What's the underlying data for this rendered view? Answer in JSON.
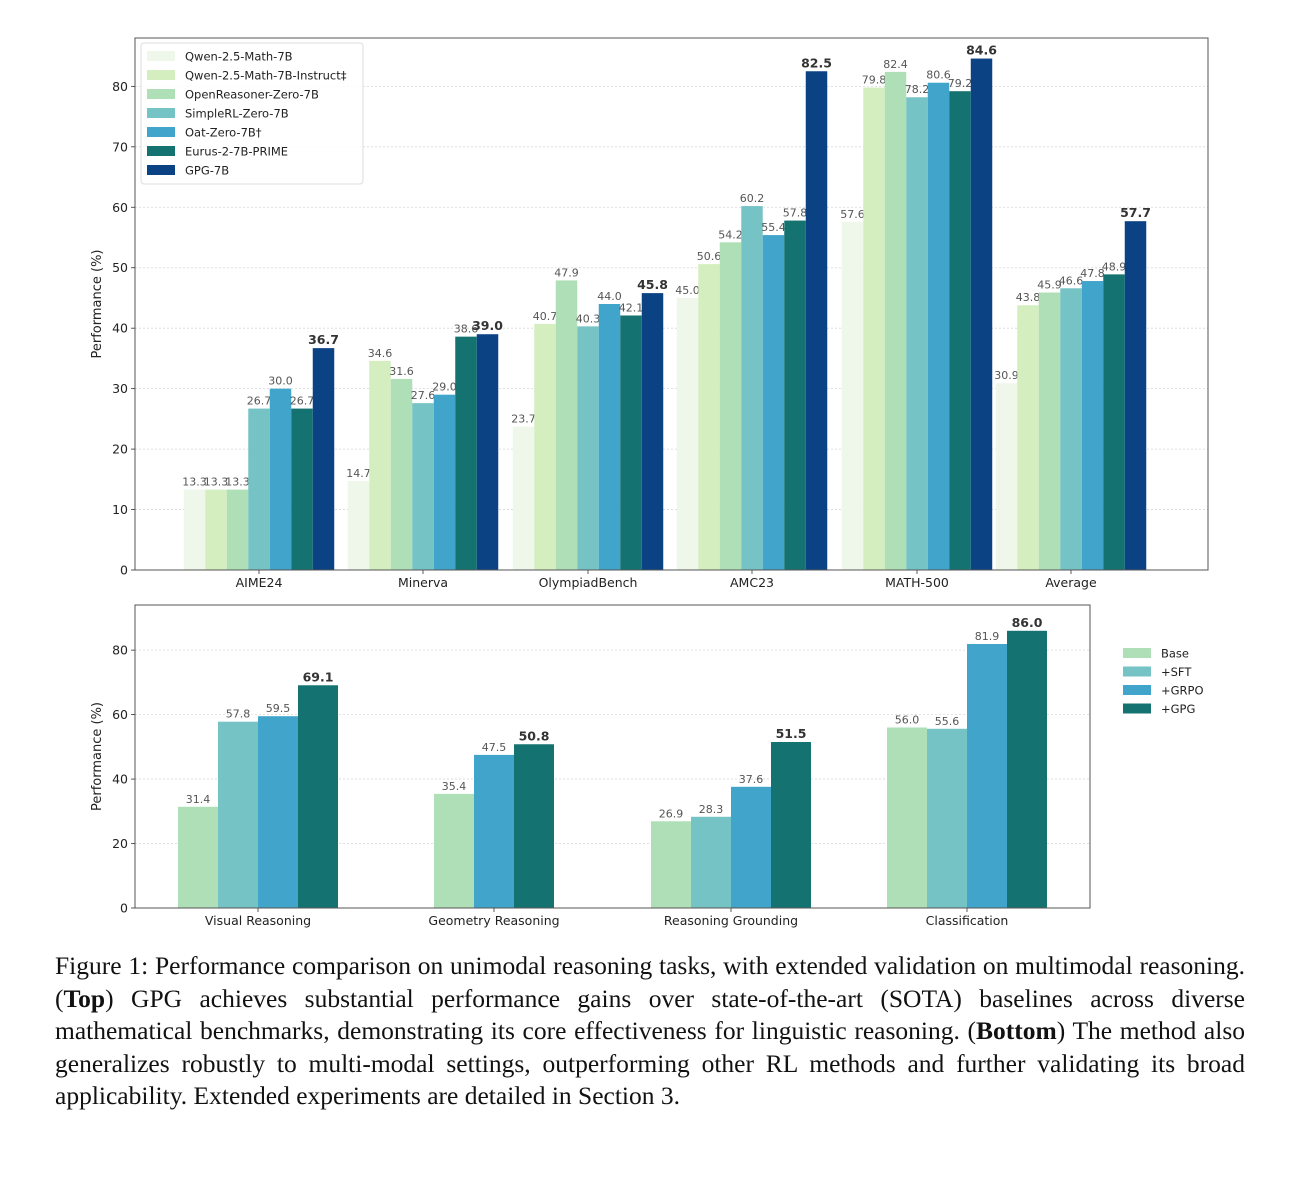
{
  "chart_data": [
    {
      "type": "bar",
      "title": "",
      "xlabel": "",
      "ylabel": "Performance (%)",
      "ylim": [
        0,
        88
      ],
      "yticks": [
        0,
        10,
        20,
        30,
        40,
        50,
        60,
        70,
        80
      ],
      "grid": true,
      "legend_position": "top-left",
      "categories": [
        "AIME24",
        "Minerva",
        "OlympiadBench",
        "AMC23",
        "MATH-500",
        "Average"
      ],
      "series": [
        {
          "name": "Qwen-2.5-Math-7B",
          "color": "#eef7ea",
          "values": [
            13.3,
            14.7,
            23.7,
            45.0,
            57.6,
            30.9
          ]
        },
        {
          "name": "Qwen-2.5-Math-7B-Instruct‡",
          "color": "#d4eec0",
          "values": [
            13.3,
            34.6,
            40.7,
            50.6,
            79.8,
            43.8
          ]
        },
        {
          "name": "OpenReasoner-Zero-7B",
          "color": "#afdfb6",
          "values": [
            13.3,
            31.6,
            47.9,
            54.2,
            82.4,
            45.9
          ]
        },
        {
          "name": "SimpleRL-Zero-7B",
          "color": "#76c3c5",
          "values": [
            26.7,
            27.6,
            40.3,
            60.2,
            78.2,
            46.6
          ]
        },
        {
          "name": "Oat-Zero-7B†",
          "color": "#41a4cb",
          "values": [
            30.0,
            29.0,
            44.0,
            55.4,
            80.6,
            47.8
          ]
        },
        {
          "name": "Eurus-2-7B-PRIME",
          "color": "#147371",
          "values": [
            26.7,
            38.6,
            42.1,
            57.8,
            79.2,
            48.9
          ]
        },
        {
          "name": "GPG-7B",
          "color": "#0a4284",
          "values": [
            36.7,
            39.0,
            45.8,
            82.5,
            84.6,
            57.7
          ],
          "highlight": true
        }
      ]
    },
    {
      "type": "bar",
      "title": "",
      "xlabel": "",
      "ylabel": "Performance (%)",
      "ylim": [
        0,
        94
      ],
      "yticks": [
        0,
        20,
        40,
        60,
        80
      ],
      "grid": true,
      "legend_position": "outside-right",
      "categories": [
        "Visual Reasoning",
        "Geometry Reasoning",
        "Reasoning Grounding",
        "Classification"
      ],
      "series": [
        {
          "name": "Base",
          "color": "#afdfb6",
          "values": [
            31.4,
            35.4,
            26.9,
            56.0
          ]
        },
        {
          "name": "+SFT",
          "color": "#76c3c5",
          "values": [
            57.8,
            null,
            28.3,
            55.6
          ]
        },
        {
          "name": "+GRPO",
          "color": "#41a4cb",
          "values": [
            59.5,
            47.5,
            37.6,
            81.9
          ]
        },
        {
          "name": "+GPG",
          "color": "#147371",
          "values": [
            69.1,
            50.8,
            51.5,
            86.0
          ],
          "highlight": true
        }
      ]
    }
  ],
  "caption": {
    "prefix": "Figure 1:  Performance comparison on unimodal reasoning tasks, with extended validation on multimodal reasoning.  (",
    "top_label": "Top",
    "middle": ") GPG achieves substantial performance gains over state-of-the-art (SOTA) baselines across diverse mathematical benchmarks, demonstrating its core effectiveness for linguistic reasoning. (",
    "bottom_label": "Bottom",
    "suffix": ") The method also generalizes robustly to multi-modal settings, outperforming other RL methods and further validating its broad applicability. Extended experiments are detailed in Section 3."
  }
}
